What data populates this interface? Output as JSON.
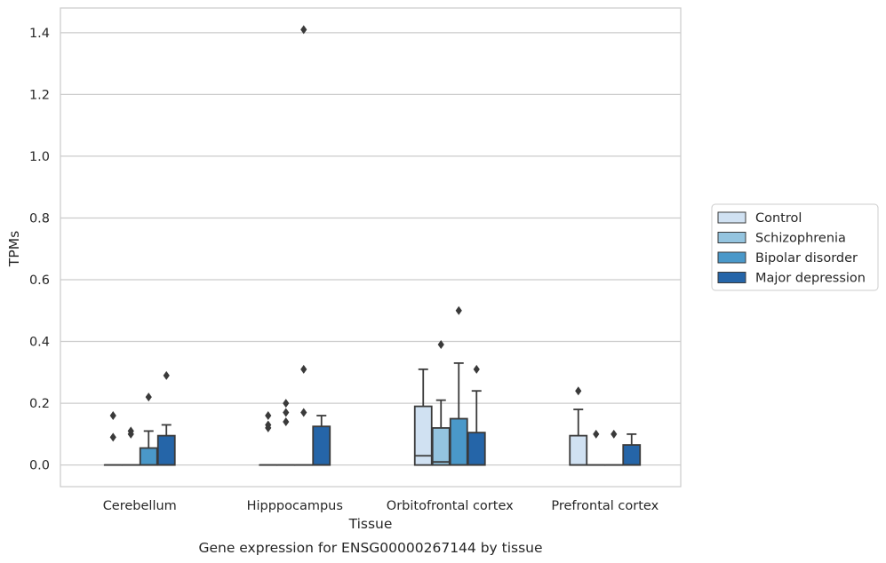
{
  "caption": "Gene expression for ENSG00000267144 by tissue",
  "chart_data": {
    "type": "box",
    "xlabel": "Tissue",
    "ylabel": "TPMs",
    "ylim": [
      -0.07,
      1.48
    ],
    "yticks": [
      "0.0",
      "0.2",
      "0.4",
      "0.6",
      "0.8",
      "1.0",
      "1.2",
      "1.4"
    ],
    "grid": "horizontal",
    "legend_position": "right",
    "categories": [
      "Cerebellum",
      "Hipppocampus",
      "Orbitofrontal cortex",
      "Prefrontal cortex"
    ],
    "series": [
      {
        "name": "Control",
        "color": "#d0e1f2",
        "boxes": [
          {
            "q1": 0,
            "median": 0,
            "q3": 0,
            "whisker_low": 0,
            "whisker_high": 0,
            "outliers": [
              0.16,
              0.09
            ]
          },
          {
            "q1": 0,
            "median": 0,
            "q3": 0,
            "whisker_low": 0,
            "whisker_high": 0,
            "outliers": [
              0.16,
              0.13,
              0.12
            ]
          },
          {
            "q1": 0,
            "median": 0.03,
            "q3": 0.19,
            "whisker_low": 0,
            "whisker_high": 0.31,
            "outliers": []
          },
          {
            "q1": 0,
            "median": 0,
            "q3": 0.095,
            "whisker_low": 0,
            "whisker_high": 0.18,
            "outliers": [
              0.24
            ]
          }
        ]
      },
      {
        "name": "Schizophrenia",
        "color": "#94c4df",
        "boxes": [
          {
            "q1": 0,
            "median": 0,
            "q3": 0,
            "whisker_low": 0,
            "whisker_high": 0,
            "outliers": [
              0.11,
              0.1
            ]
          },
          {
            "q1": 0,
            "median": 0,
            "q3": 0,
            "whisker_low": 0,
            "whisker_high": 0,
            "outliers": [
              0.2,
              0.17,
              0.14
            ]
          },
          {
            "q1": 0,
            "median": 0.01,
            "q3": 0.12,
            "whisker_low": 0,
            "whisker_high": 0.21,
            "outliers": [
              0.39
            ]
          },
          {
            "q1": 0,
            "median": 0,
            "q3": 0,
            "whisker_low": 0,
            "whisker_high": 0,
            "outliers": [
              0.1
            ]
          }
        ]
      },
      {
        "name": "Bipolar disorder",
        "color": "#4a98c9",
        "boxes": [
          {
            "q1": 0,
            "median": 0,
            "q3": 0.055,
            "whisker_low": 0,
            "whisker_high": 0.11,
            "outliers": [
              0.22
            ]
          },
          {
            "q1": 0,
            "median": 0,
            "q3": 0,
            "whisker_low": 0,
            "whisker_high": 0,
            "outliers": [
              0.31,
              0.17,
              1.41
            ]
          },
          {
            "q1": 0,
            "median": 0,
            "q3": 0.15,
            "whisker_low": 0,
            "whisker_high": 0.33,
            "outliers": [
              0.5
            ]
          },
          {
            "q1": 0,
            "median": 0,
            "q3": 0,
            "whisker_low": 0,
            "whisker_high": 0,
            "outliers": [
              0.1
            ]
          }
        ]
      },
      {
        "name": "Major depression",
        "color": "#2565a8",
        "boxes": [
          {
            "q1": 0,
            "median": 0,
            "q3": 0.095,
            "whisker_low": 0,
            "whisker_high": 0.13,
            "outliers": [
              0.29
            ]
          },
          {
            "q1": 0,
            "median": 0,
            "q3": 0.125,
            "whisker_low": 0,
            "whisker_high": 0.16,
            "outliers": []
          },
          {
            "q1": 0,
            "median": 0,
            "q3": 0.105,
            "whisker_low": 0,
            "whisker_high": 0.24,
            "outliers": [
              0.31
            ]
          },
          {
            "q1": 0,
            "median": 0,
            "q3": 0.065,
            "whisker_low": 0,
            "whisker_high": 0.1,
            "outliers": []
          }
        ]
      }
    ]
  }
}
